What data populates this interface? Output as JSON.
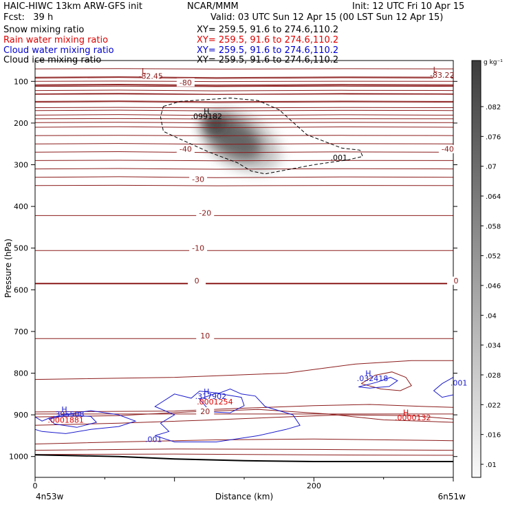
{
  "header": {
    "title_left": "HAIC-HIWC 13km ARW-GFS init",
    "institution": "NCAR/MMM",
    "init": "Init: 12 UTC Fri 10 Apr 15",
    "forecast": "Fcst:   39 h",
    "valid": "Valid: 03 UTC Sun 12 Apr 15 (00 LST Sun 12 Apr 15)"
  },
  "fields": [
    {
      "name": "Snow mixing ratio",
      "xy": "XY= 259.5, 91.6 to 274.6,110.2",
      "color": "#000000"
    },
    {
      "name": "Rain water mixing ratio",
      "xy": "XY= 259.5, 91.6 to 274.6,110.2",
      "color": "#dd0000"
    },
    {
      "name": "Cloud water mixing ratio",
      "xy": "XY= 259.5, 91.6 to 274.6,110.2",
      "color": "#0000cc"
    },
    {
      "name": "Cloud ice mixing ratio",
      "xy": "XY= 259.5, 91.6 to 274.6,110.2",
      "color": "#000000"
    }
  ],
  "chart_data": {
    "type": "heatmap",
    "xlabel": "Distance (km)",
    "ylabel": "Pressure (hPa)",
    "xlim": [
      0,
      300
    ],
    "ylim": [
      1050,
      50
    ],
    "x_ticks": [
      {
        "v": 0,
        "label": "0"
      },
      {
        "v": 200,
        "label": "200"
      }
    ],
    "y_ticks": [
      100,
      200,
      300,
      400,
      500,
      600,
      700,
      800,
      900,
      1000
    ],
    "x_end_labels": [
      "4n53w",
      "6n51w"
    ],
    "colorbar": {
      "unit": "g kg⁻¹",
      "ticks": [
        ".01",
        ".016",
        ".022",
        ".028",
        ".034",
        ".04",
        ".046",
        ".052",
        ".058",
        ".064",
        ".07",
        ".076",
        ".082"
      ]
    },
    "snow_max": {
      "label": "H",
      "value": ".099182",
      "x": 123,
      "p": 190
    },
    "temperature_labels": [
      {
        "v": "-82.45",
        "x": 83,
        "p": 94,
        "marker": "L"
      },
      {
        "v": "-83.22",
        "x": 292,
        "p": 91,
        "marker": "L"
      },
      {
        "v": "-80",
        "x": 108,
        "p": 109
      },
      {
        "v": "-40",
        "x": 108,
        "p": 269
      },
      {
        "v": "-40",
        "x": 296,
        "p": 269
      },
      {
        "v": "-30",
        "x": 117,
        "p": 341
      },
      {
        "v": "-20",
        "x": 122,
        "p": 422
      },
      {
        "v": "-10",
        "x": 117,
        "p": 506
      },
      {
        "v": "0",
        "x": 116,
        "p": 585
      },
      {
        "v": "0",
        "x": 302,
        "p": 585
      },
      {
        "v": "10",
        "x": 122,
        "p": 717
      },
      {
        "v": "20",
        "x": 122,
        "p": 898
      }
    ],
    "cloud_ice_labels": [
      {
        "v": ".001",
        "x": 218,
        "p": 289
      }
    ],
    "cloud_water_labels": [
      {
        "label": "H",
        "value": ".317902",
        "x": 126,
        "p": 862
      },
      {
        "label": "H",
        "value": ".395508",
        "x": 24,
        "p": 905
      },
      {
        "label": "H",
        "value": ".032418",
        "x": 242,
        "p": 819
      },
      {
        "value": ".001",
        "x": 85,
        "p": 965
      },
      {
        "value": ".001",
        "x": 304,
        "p": 830
      }
    ],
    "rain_labels": [
      {
        "value": ".0001254",
        "x": 129,
        "p": 875
      },
      {
        "value": ".0001881",
        "x": 22,
        "p": 919
      },
      {
        "label": "H",
        "value": ".0000132",
        "x": 271,
        "p": 913
      }
    ]
  }
}
